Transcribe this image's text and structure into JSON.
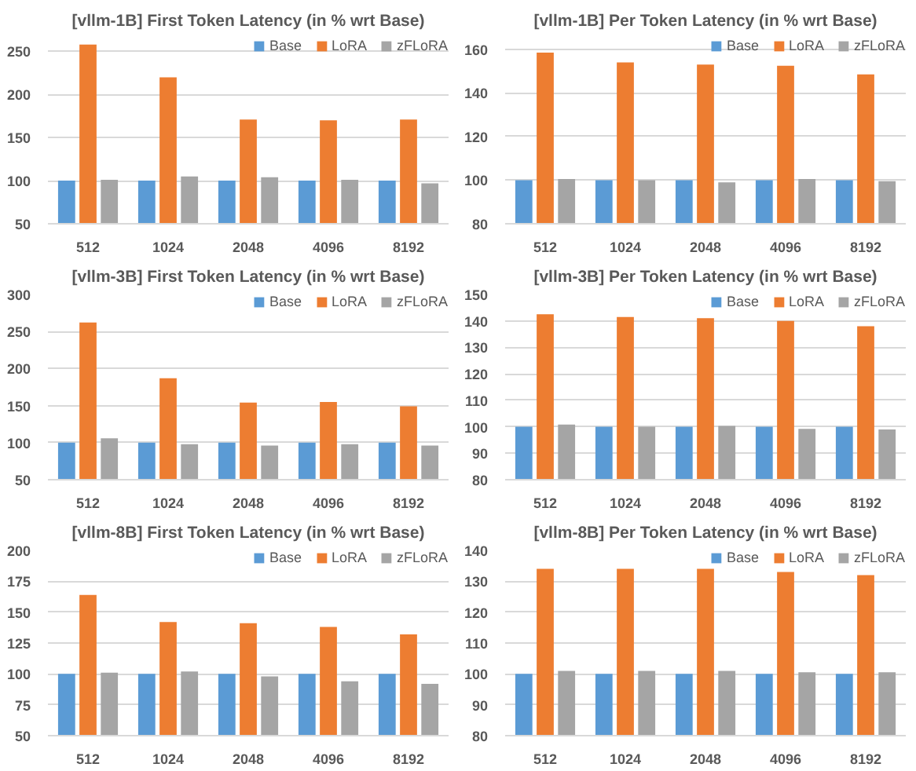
{
  "chart_data": [
    {
      "type": "bar",
      "title": "[vllm-1B] First Token Latency (in % wrt Base)",
      "categories": [
        "512",
        "1024",
        "2048",
        "4096",
        "8192"
      ],
      "ylim": [
        50,
        265
      ],
      "yticks": [
        50,
        100,
        150,
        200,
        250
      ],
      "grid": "y",
      "legend": "top right",
      "series": [
        {
          "name": "Base",
          "color": "#5b9bd5",
          "values": [
            100,
            100,
            100,
            100,
            100
          ]
        },
        {
          "name": "LoRA",
          "color": "#ed7d31",
          "values": [
            258,
            220,
            171,
            170,
            171
          ]
        },
        {
          "name": "zFLoRA",
          "color": "#a5a5a5",
          "values": [
            101,
            105,
            104,
            101,
            97
          ]
        }
      ]
    },
    {
      "type": "bar",
      "title": "[vllm-1B] Per Token Latency (in % wrt Base)",
      "categories": [
        "512",
        "1024",
        "2048",
        "4096",
        "8192"
      ],
      "ylim": [
        80,
        165
      ],
      "yticks": [
        80,
        100,
        120,
        140,
        160
      ],
      "grid": "y",
      "legend": "top right",
      "series": [
        {
          "name": "Base",
          "color": "#5b9bd5",
          "values": [
            100,
            100,
            100,
            100,
            100
          ]
        },
        {
          "name": "LoRA",
          "color": "#ed7d31",
          "values": [
            158.5,
            154,
            153,
            152.5,
            148.5
          ]
        },
        {
          "name": "zFLoRA",
          "color": "#a5a5a5",
          "values": [
            100.5,
            100,
            99,
            100.5,
            99.5
          ]
        }
      ]
    },
    {
      "type": "bar",
      "title": "[vllm-3B] First Token Latency (in % wrt Base)",
      "categories": [
        "512",
        "1024",
        "2048",
        "4096",
        "8192"
      ],
      "ylim": [
        50,
        300
      ],
      "yticks": [
        50,
        100,
        150,
        200,
        250,
        300
      ],
      "grid": "y",
      "legend": "top right",
      "series": [
        {
          "name": "Base",
          "color": "#5b9bd5",
          "values": [
            100,
            100,
            100,
            100,
            100
          ]
        },
        {
          "name": "LoRA",
          "color": "#ed7d31",
          "values": [
            262,
            187,
            154,
            155,
            149
          ]
        },
        {
          "name": "zFLoRA",
          "color": "#a5a5a5",
          "values": [
            106,
            98,
            96,
            98,
            96
          ]
        }
      ]
    },
    {
      "type": "bar",
      "title": "[vllm-3B] Per Token Latency (in % wrt Base)",
      "categories": [
        "512",
        "1024",
        "2048",
        "4096",
        "8192"
      ],
      "ylim": [
        80,
        150
      ],
      "yticks": [
        80,
        90,
        100,
        110,
        120,
        130,
        140,
        150
      ],
      "grid": "y",
      "legend": "top right",
      "series": [
        {
          "name": "Base",
          "color": "#5b9bd5",
          "values": [
            100,
            100,
            100,
            100,
            100
          ]
        },
        {
          "name": "LoRA",
          "color": "#ed7d31",
          "values": [
            142.5,
            141.5,
            141,
            140,
            138
          ]
        },
        {
          "name": "zFLoRA",
          "color": "#a5a5a5",
          "values": [
            100.8,
            100,
            100.3,
            99.2,
            99
          ]
        }
      ]
    },
    {
      "type": "bar",
      "title": "[vllm-8B] First Token Latency (in % wrt Base)",
      "categories": [
        "512",
        "1024",
        "2048",
        "4096",
        "8192"
      ],
      "ylim": [
        50,
        200
      ],
      "yticks": [
        50,
        75,
        100,
        125,
        150,
        175,
        200
      ],
      "grid": "y",
      "legend": "top right",
      "series": [
        {
          "name": "Base",
          "color": "#5b9bd5",
          "values": [
            100,
            100,
            100,
            100,
            100
          ]
        },
        {
          "name": "LoRA",
          "color": "#ed7d31",
          "values": [
            164,
            142,
            141,
            138,
            132
          ]
        },
        {
          "name": "zFLoRA",
          "color": "#a5a5a5",
          "values": [
            101,
            102,
            98,
            94,
            92
          ]
        }
      ]
    },
    {
      "type": "bar",
      "title": "[vllm-8B] Per Token Latency (in % wrt Base)",
      "categories": [
        "512",
        "1024",
        "2048",
        "4096",
        "8192"
      ],
      "ylim": [
        80,
        140
      ],
      "yticks": [
        80,
        90,
        100,
        110,
        120,
        130,
        140
      ],
      "grid": "y",
      "legend": "top right",
      "series": [
        {
          "name": "Base",
          "color": "#5b9bd5",
          "values": [
            100,
            100,
            100,
            100,
            100
          ]
        },
        {
          "name": "LoRA",
          "color": "#ed7d31",
          "values": [
            134,
            134,
            134,
            133,
            132
          ]
        },
        {
          "name": "zFLoRA",
          "color": "#a5a5a5",
          "values": [
            101,
            101,
            101,
            100.5,
            100.5
          ]
        }
      ]
    }
  ]
}
